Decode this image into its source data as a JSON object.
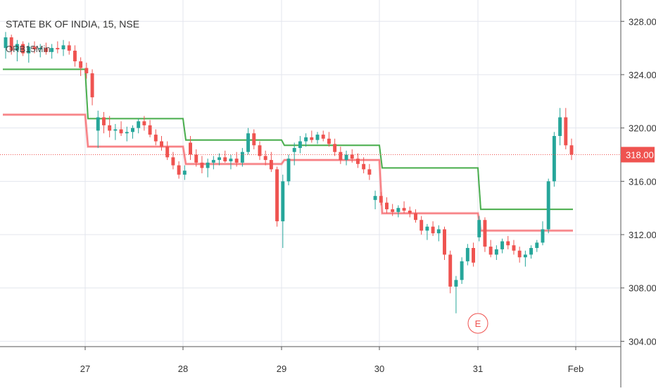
{
  "chart_data": {
    "type": "candlestick",
    "title": "STATE BK OF INDIA, 15, NSE",
    "indicator": "ORB15Min",
    "x_ticks": [
      "27",
      "28",
      "29",
      "30",
      "31",
      "Feb"
    ],
    "y_ticks": [
      "328.00",
      "324.00",
      "320.00",
      "316.00",
      "312.00",
      "308.00",
      "304.00"
    ],
    "ylim": [
      303.6,
      329.6
    ],
    "last_price": "318.00",
    "last_value": 318.0,
    "event_marker": "E",
    "event_day": "31",
    "colors": {
      "up": "#26a69a",
      "down": "#ef5350",
      "orb_high": "#4caf50",
      "orb_low": "#f77c80",
      "price_line": "#ef5350",
      "price_label_bg": "#ef5350",
      "grid": "#e3e6ee",
      "axis_text": "#333333"
    },
    "orb_high": [
      {
        "from": "26 start",
        "to": "26 end",
        "value": 324.4
      },
      {
        "from": "27",
        "to": "27 end",
        "value": 320.7
      },
      {
        "from": "28",
        "to": "28 end",
        "value": 319.1
      },
      {
        "from": "29",
        "to": "29 end",
        "value": 318.7
      },
      {
        "from": "30",
        "to": "30 end",
        "value": 317.0
      },
      {
        "from": "31",
        "to": "31 end",
        "value": 313.9
      }
    ],
    "orb_low": [
      {
        "from": "26 start",
        "to": "26 end",
        "value": 321.0
      },
      {
        "from": "27",
        "to": "27 end",
        "value": 318.6
      },
      {
        "from": "28",
        "to": "28 end",
        "value": 317.3
      },
      {
        "from": "29",
        "to": "29 end",
        "value": 317.6
      },
      {
        "from": "30",
        "to": "30 end",
        "value": 313.6
      },
      {
        "from": "31",
        "to": "31 end",
        "value": 312.3
      }
    ],
    "candles": [
      [
        326.0,
        327.2,
        325.2,
        326.8
      ],
      [
        326.8,
        327.0,
        325.5,
        325.8
      ],
      [
        325.8,
        326.6,
        325.0,
        326.3
      ],
      [
        326.3,
        326.5,
        325.4,
        325.6
      ],
      [
        325.6,
        326.4,
        324.9,
        326.1
      ],
      [
        326.1,
        326.5,
        325.6,
        325.9
      ],
      [
        325.9,
        326.3,
        325.3,
        326.0
      ],
      [
        326.0,
        326.4,
        325.5,
        325.7
      ],
      [
        325.7,
        326.3,
        325.2,
        326.0
      ],
      [
        326.0,
        326.5,
        325.6,
        325.9
      ],
      [
        325.9,
        326.6,
        325.4,
        326.2
      ],
      [
        326.2,
        326.5,
        325.5,
        325.8
      ],
      [
        325.8,
        326.2,
        324.6,
        325.0
      ],
      [
        325.0,
        325.3,
        323.9,
        324.5
      ],
      [
        324.5,
        324.9,
        323.7,
        324.1
      ],
      [
        324.1,
        324.4,
        321.7,
        322.3
      ],
      [
        319.8,
        321.3,
        318.5,
        320.8
      ],
      [
        320.8,
        321.2,
        319.6,
        320.2
      ],
      [
        320.2,
        320.9,
        319.3,
        319.8
      ],
      [
        319.8,
        320.3,
        319.1,
        319.9
      ],
      [
        319.9,
        320.5,
        319.4,
        319.6
      ],
      [
        319.6,
        320.1,
        319.0,
        319.7
      ],
      [
        319.7,
        320.2,
        319.2,
        320.0
      ],
      [
        320.0,
        320.7,
        319.6,
        320.5
      ],
      [
        320.5,
        320.9,
        319.8,
        320.2
      ],
      [
        320.2,
        320.6,
        319.3,
        319.5
      ],
      [
        319.5,
        319.9,
        318.7,
        319.0
      ],
      [
        319.0,
        319.4,
        318.3,
        318.6
      ],
      [
        318.6,
        319.0,
        317.6,
        317.8
      ],
      [
        317.8,
        318.2,
        316.9,
        317.2
      ],
      [
        317.2,
        317.5,
        316.2,
        316.5
      ],
      [
        316.5,
        317.2,
        316.1,
        316.8
      ],
      [
        318.9,
        319.4,
        317.6,
        318.0
      ],
      [
        318.0,
        318.4,
        317.1,
        317.4
      ],
      [
        317.4,
        317.9,
        316.6,
        317.0
      ],
      [
        317.0,
        317.7,
        316.3,
        317.4
      ],
      [
        317.4,
        317.9,
        316.9,
        317.6
      ],
      [
        317.6,
        318.1,
        317.2,
        317.8
      ],
      [
        317.8,
        318.3,
        317.4,
        317.5
      ],
      [
        317.5,
        318.0,
        316.9,
        317.7
      ],
      [
        317.7,
        318.2,
        317.1,
        317.4
      ],
      [
        317.4,
        318.5,
        317.1,
        318.2
      ],
      [
        318.2,
        320.0,
        318.0,
        319.6
      ],
      [
        319.6,
        319.9,
        318.4,
        318.7
      ],
      [
        318.7,
        319.0,
        317.6,
        317.9
      ],
      [
        317.9,
        318.3,
        317.2,
        317.6
      ],
      [
        317.6,
        318.2,
        316.7,
        316.9
      ],
      [
        316.9,
        317.1,
        312.6,
        313.0
      ],
      [
        313.0,
        316.5,
        311.0,
        316.0
      ],
      [
        316.0,
        318.0,
        315.7,
        317.7
      ],
      [
        318.2,
        318.9,
        317.2,
        318.5
      ],
      [
        318.5,
        319.4,
        318.1,
        319.0
      ],
      [
        319.0,
        319.6,
        318.6,
        319.3
      ],
      [
        319.3,
        319.8,
        318.9,
        319.1
      ],
      [
        319.1,
        319.7,
        318.8,
        319.5
      ],
      [
        319.5,
        319.8,
        319.0,
        319.2
      ],
      [
        319.2,
        319.7,
        318.6,
        318.8
      ],
      [
        318.8,
        319.2,
        317.9,
        318.2
      ],
      [
        318.2,
        318.6,
        317.3,
        317.6
      ],
      [
        317.6,
        318.3,
        317.2,
        318.0
      ],
      [
        318.0,
        318.4,
        317.4,
        317.7
      ],
      [
        317.7,
        318.1,
        317.0,
        317.3
      ],
      [
        317.3,
        317.8,
        316.6,
        316.9
      ],
      [
        316.9,
        317.3,
        316.1,
        316.5
      ],
      [
        314.6,
        315.3,
        313.9,
        314.9
      ],
      [
        314.9,
        315.2,
        314.2,
        314.4
      ],
      [
        314.4,
        314.8,
        313.6,
        313.9
      ],
      [
        313.9,
        314.3,
        313.4,
        313.7
      ],
      [
        313.7,
        314.2,
        313.3,
        314.0
      ],
      [
        314.0,
        314.5,
        313.6,
        313.8
      ],
      [
        313.8,
        314.1,
        313.3,
        313.6
      ],
      [
        313.6,
        313.9,
        312.9,
        313.1
      ],
      [
        313.1,
        313.4,
        312.0,
        312.3
      ],
      [
        312.3,
        312.8,
        311.6,
        312.6
      ],
      [
        312.6,
        313.0,
        311.9,
        312.1
      ],
      [
        312.1,
        312.7,
        311.5,
        312.4
      ],
      [
        312.4,
        312.6,
        310.1,
        310.5
      ],
      [
        310.5,
        310.8,
        307.6,
        308.1
      ],
      [
        308.1,
        308.9,
        306.1,
        308.6
      ],
      [
        308.6,
        310.3,
        308.3,
        310.0
      ],
      [
        310.0,
        311.3,
        309.7,
        311.0
      ],
      [
        311.0,
        311.4,
        309.6,
        309.9
      ],
      [
        311.8,
        313.4,
        311.5,
        313.1
      ],
      [
        313.1,
        313.3,
        310.7,
        311.1
      ],
      [
        311.1,
        311.6,
        310.3,
        310.5
      ],
      [
        310.5,
        311.2,
        310.1,
        310.9
      ],
      [
        310.9,
        311.7,
        310.6,
        311.5
      ],
      [
        311.5,
        311.9,
        310.9,
        311.2
      ],
      [
        311.2,
        311.6,
        310.5,
        310.8
      ],
      [
        310.8,
        311.1,
        309.9,
        310.3
      ],
      [
        310.3,
        310.8,
        309.6,
        310.5
      ],
      [
        310.5,
        311.2,
        310.2,
        311.0
      ],
      [
        311.0,
        311.6,
        310.7,
        311.4
      ],
      [
        311.4,
        313.0,
        311.2,
        312.4
      ],
      [
        312.4,
        316.2,
        312.1,
        316.0
      ],
      [
        316.0,
        319.7,
        315.6,
        319.4
      ],
      [
        319.4,
        321.5,
        318.7,
        320.8
      ],
      [
        320.8,
        321.5,
        318.4,
        318.7
      ],
      [
        318.7,
        319.2,
        317.6,
        318.0
      ]
    ]
  }
}
